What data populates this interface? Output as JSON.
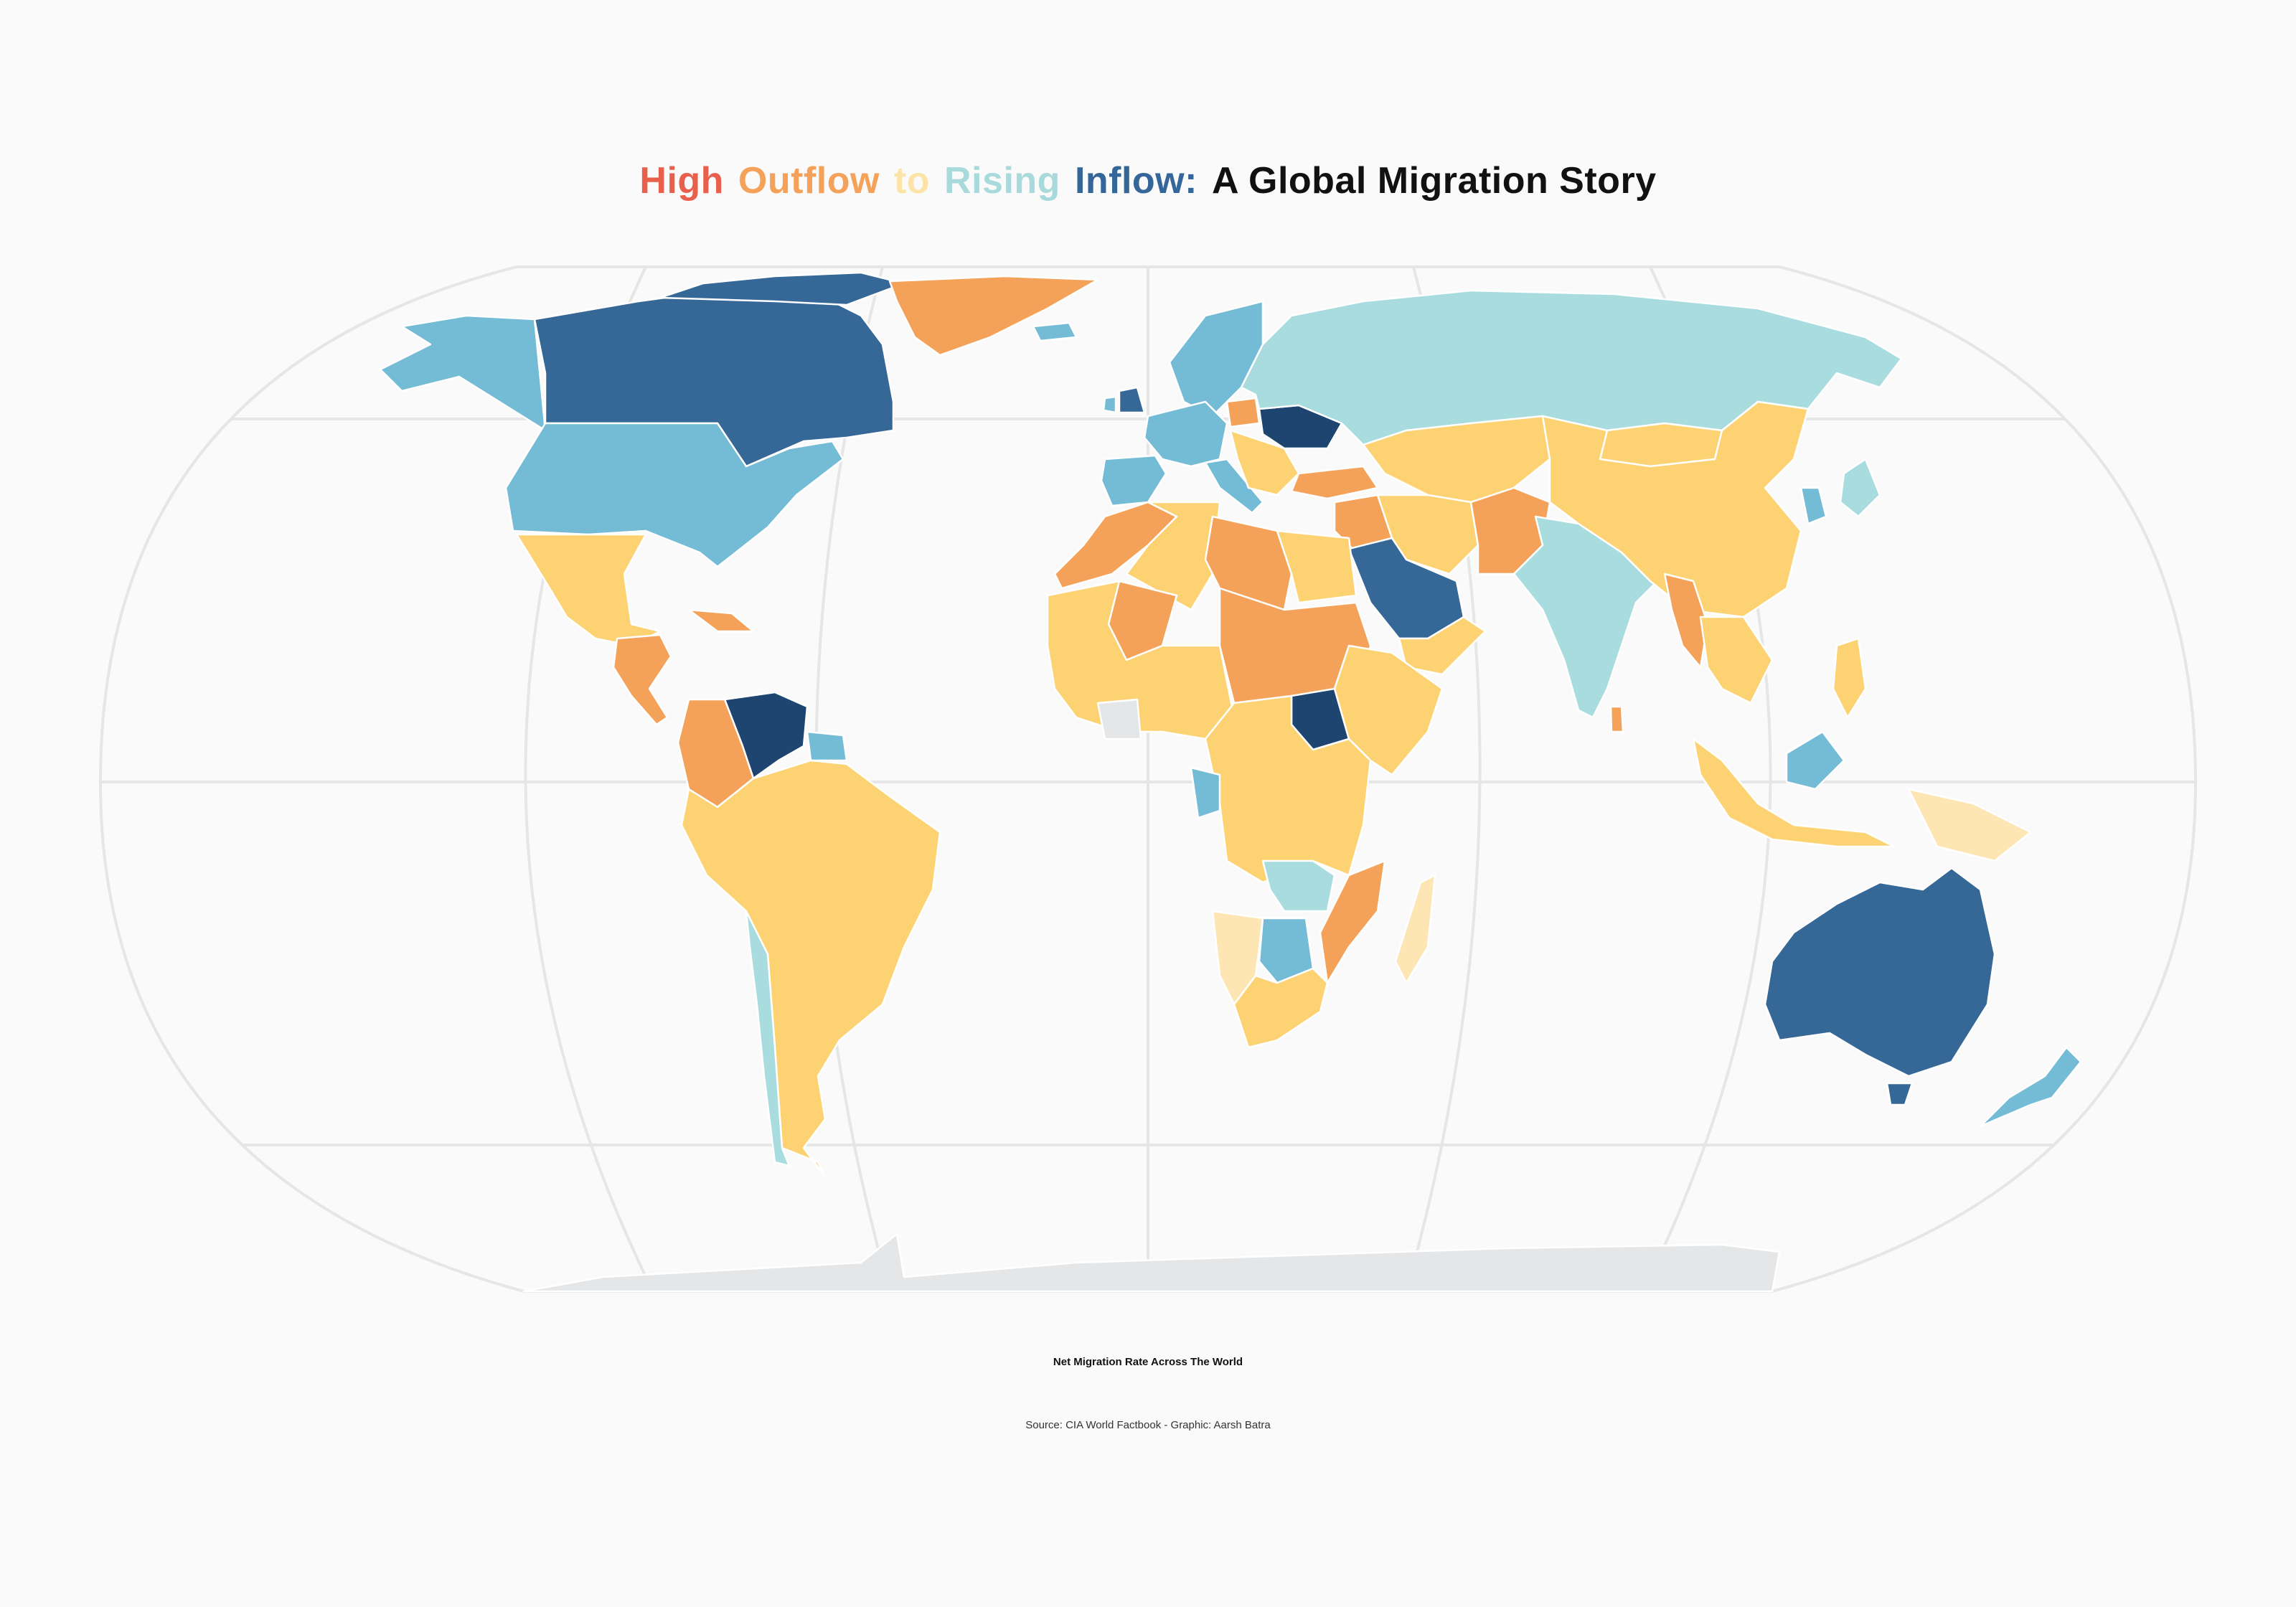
{
  "title": {
    "segments": [
      {
        "text": "High",
        "color": "#e8604c"
      },
      {
        "text": "Outflow",
        "color": "#f4a259"
      },
      {
        "text": "to",
        "color": "#fce4a8"
      },
      {
        "text": "Rising",
        "color": "#a8dadc"
      },
      {
        "text": "Inflow:",
        "color": "#34669a"
      },
      {
        "text": "A Global Migration Story",
        "color": "#111111"
      }
    ]
  },
  "subtitle": "Net Migration Rate Across The World",
  "source": "Source: CIA World Factbook - Graphic: Aarsh Batra",
  "colors": {
    "high_outflow": "#e8604c",
    "outflow": "#f4a259",
    "slight_outflow": "#fdd273",
    "near_zero": "#fde5b4",
    "slight_inflow": "#a8dcdf",
    "inflow": "#74bcd6",
    "high_inflow": "#356797",
    "very_high_inflow": "#1d4570",
    "no_data": "#e4e6e8",
    "graticule": "#e6e6e6"
  },
  "map": {
    "projection": "robinson",
    "graticule": true
  },
  "regions": [
    {
      "name": "alaska",
      "category": "inflow"
    },
    {
      "name": "canada",
      "category": "high_inflow"
    },
    {
      "name": "greenland",
      "category": "outflow"
    },
    {
      "name": "usa",
      "category": "inflow"
    },
    {
      "name": "mexico",
      "category": "slight_outflow"
    },
    {
      "name": "central-america",
      "category": "outflow"
    },
    {
      "name": "caribbean",
      "category": "outflow"
    },
    {
      "name": "venezuela",
      "category": "very_high_inflow"
    },
    {
      "name": "colombia",
      "category": "outflow"
    },
    {
      "name": "guianas",
      "category": "inflow"
    },
    {
      "name": "south-america",
      "category": "slight_outflow"
    },
    {
      "name": "chile",
      "category": "slight_inflow"
    },
    {
      "name": "iceland",
      "category": "inflow"
    },
    {
      "name": "scandinavia",
      "category": "inflow"
    },
    {
      "name": "uk",
      "category": "high_inflow"
    },
    {
      "name": "ireland",
      "category": "inflow"
    },
    {
      "name": "iberia",
      "category": "inflow"
    },
    {
      "name": "western-europe",
      "category": "inflow"
    },
    {
      "name": "italy",
      "category": "inflow"
    },
    {
      "name": "poland",
      "category": "outflow"
    },
    {
      "name": "ukraine",
      "category": "very_high_inflow"
    },
    {
      "name": "balkans",
      "category": "slight_outflow"
    },
    {
      "name": "russia",
      "category": "slight_inflow"
    },
    {
      "name": "turkey",
      "category": "outflow"
    },
    {
      "name": "central-asia",
      "category": "slight_outflow"
    },
    {
      "name": "middle-east",
      "category": "outflow"
    },
    {
      "name": "iran",
      "category": "slight_outflow"
    },
    {
      "name": "saudi-arabia",
      "category": "high_inflow"
    },
    {
      "name": "yemen-oman",
      "category": "slight_outflow"
    },
    {
      "name": "afghanistan-pakistan",
      "category": "outflow"
    },
    {
      "name": "india",
      "category": "slight_inflow"
    },
    {
      "name": "sri-lanka",
      "category": "outflow"
    },
    {
      "name": "china",
      "category": "slight_outflow"
    },
    {
      "name": "mongolia",
      "category": "slight_outflow"
    },
    {
      "name": "korea",
      "category": "inflow"
    },
    {
      "name": "japan",
      "category": "slight_inflow"
    },
    {
      "name": "myanmar",
      "category": "outflow"
    },
    {
      "name": "southeast-asia",
      "category": "slight_outflow"
    },
    {
      "name": "indonesia",
      "category": "slight_outflow"
    },
    {
      "name": "borneo",
      "category": "inflow"
    },
    {
      "name": "philippines",
      "category": "slight_outflow"
    },
    {
      "name": "papua-new-guinea",
      "category": "near_zero"
    },
    {
      "name": "australia",
      "category": "high_inflow"
    },
    {
      "name": "tasmania",
      "category": "high_inflow"
    },
    {
      "name": "new-zealand",
      "category": "inflow"
    },
    {
      "name": "morocco",
      "category": "outflow"
    },
    {
      "name": "algeria",
      "category": "slight_outflow"
    },
    {
      "name": "libya",
      "category": "outflow"
    },
    {
      "name": "egypt",
      "category": "slight_outflow"
    },
    {
      "name": "mali",
      "category": "outflow"
    },
    {
      "name": "west-africa",
      "category": "slight_outflow"
    },
    {
      "name": "chad-sudan",
      "category": "outflow"
    },
    {
      "name": "south-sudan",
      "category": "very_high_inflow"
    },
    {
      "name": "horn-of-africa",
      "category": "slight_outflow"
    },
    {
      "name": "central-africa",
      "category": "slight_outflow"
    },
    {
      "name": "gabon",
      "category": "inflow"
    },
    {
      "name": "zambia",
      "category": "slight_inflow"
    },
    {
      "name": "namibia",
      "category": "near_zero"
    },
    {
      "name": "botswana",
      "category": "inflow"
    },
    {
      "name": "mozambique",
      "category": "outflow"
    },
    {
      "name": "south-africa",
      "category": "slight_outflow"
    },
    {
      "name": "madagascar",
      "category": "near_zero"
    },
    {
      "name": "antarctica",
      "category": "no_data"
    }
  ]
}
